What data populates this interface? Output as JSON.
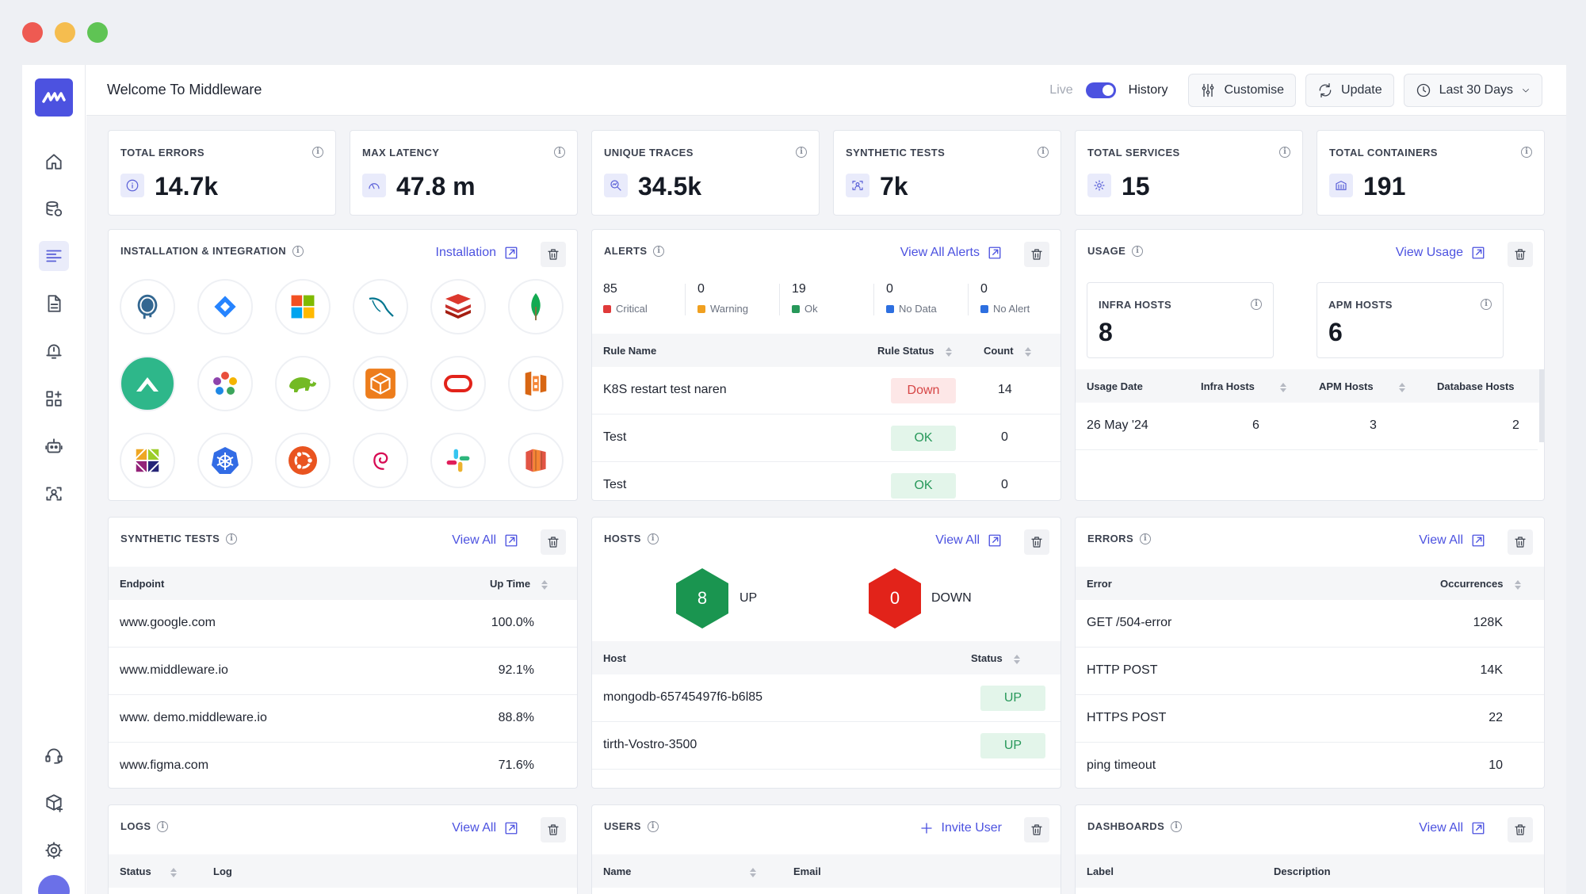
{
  "app": {
    "title": "Welcome To Middleware"
  },
  "topbar": {
    "live": "Live",
    "history": "History",
    "customise": "Customise",
    "update": "Update",
    "range": "Last 30 Days"
  },
  "stats": [
    {
      "label": "TOTAL ERRORS",
      "value": "14.7k",
      "icon": "info-circle-icon"
    },
    {
      "label": "MAX LATENCY",
      "value": "47.8 m",
      "icon": "gauge-icon"
    },
    {
      "label": "UNIQUE TRACES",
      "value": "34.5k",
      "icon": "trace-search-icon"
    },
    {
      "label": "SYNTHETIC TESTS",
      "value": "7k",
      "icon": "synthetic-icon"
    },
    {
      "label": "TOTAL SERVICES",
      "value": "15",
      "icon": "services-gear-icon"
    },
    {
      "label": "TOTAL CONTAINERS",
      "value": "191",
      "icon": "container-icon"
    }
  ],
  "installation": {
    "title": "INSTALLATION & INTEGRATION",
    "link": "Installation",
    "icons": [
      "postgresql-icon",
      "jira-icon",
      "microsoft-icon",
      "mysql-icon",
      "redis-icon",
      "mongodb-icon",
      "rancher-icon",
      "pinwheel-icon",
      "opensuse-icon",
      "aws-package-icon",
      "oracle-icon",
      "aws-ecs-icon",
      "centos-icon",
      "kubernetes-icon",
      "ubuntu-icon",
      "debian-icon",
      "slack-icon",
      "aws-icon"
    ]
  },
  "alerts": {
    "title": "ALERTS",
    "link": "View All Alerts",
    "summary": [
      {
        "count": "85",
        "label": "Critical",
        "color": "#e03a3a"
      },
      {
        "count": "0",
        "label": "Warning",
        "color": "#f0a020"
      },
      {
        "count": "19",
        "label": "Ok",
        "color": "#27985a"
      },
      {
        "count": "0",
        "label": "No Data",
        "color": "#2d6fe0"
      },
      {
        "count": "0",
        "label": "No Alert",
        "color": "#2d6fe0"
      }
    ],
    "columns": [
      "Rule Name",
      "Rule Status",
      "Count"
    ],
    "rows": [
      {
        "name": "K8S restart test naren",
        "status": "Down",
        "count": "14"
      },
      {
        "name": "Test",
        "status": "OK",
        "count": "0"
      },
      {
        "name": "Test",
        "status": "OK",
        "count": "0"
      }
    ]
  },
  "usage": {
    "title": "USAGE",
    "link": "View Usage",
    "infra_label": "INFRA HOSTS",
    "infra_value": "8",
    "apm_label": "APM HOSTS",
    "apm_value": "6",
    "columns": [
      "Usage Date",
      "Infra Hosts",
      "APM Hosts",
      "Database Hosts"
    ],
    "rows": [
      {
        "date": "26 May '24",
        "infra": "6",
        "apm": "3",
        "db": "2"
      }
    ]
  },
  "synthetic": {
    "title": "SYNTHETIC TESTS",
    "link": "View All",
    "columns": [
      "Endpoint",
      "Up Time"
    ],
    "rows": [
      {
        "endpoint": "www.google.com",
        "uptime": "100.0%"
      },
      {
        "endpoint": "www.middleware.io",
        "uptime": "92.1%"
      },
      {
        "endpoint": "www. demo.middleware.io",
        "uptime": "88.8%"
      },
      {
        "endpoint": "www.figma.com",
        "uptime": "71.6%"
      }
    ]
  },
  "hosts": {
    "title": "HOSTS",
    "link": "View All",
    "up_count": "8",
    "up_label": "UP",
    "down_count": "0",
    "down_label": "DOWN",
    "columns": [
      "Host",
      "Status"
    ],
    "rows": [
      {
        "host": "mongodb-65745497f6-b6l85",
        "status": "UP"
      },
      {
        "host": "tirth-Vostro-3500",
        "status": "UP"
      }
    ]
  },
  "errors": {
    "title": "ERRORS",
    "link": "View All",
    "columns": [
      "Error",
      "Occurrences"
    ],
    "rows": [
      {
        "error": "GET /504-error",
        "count": "128K"
      },
      {
        "error": "HTTP POST",
        "count": "14K"
      },
      {
        "error": "HTTPS POST",
        "count": "22"
      },
      {
        "error": "ping timeout",
        "count": "10"
      }
    ]
  },
  "logs": {
    "title": "LOGS",
    "link": "View All",
    "columns": [
      "Status",
      "Log"
    ]
  },
  "users": {
    "title": "USERS",
    "link": "Invite User",
    "columns": [
      "Name",
      "Email"
    ]
  },
  "dashboards": {
    "title": "DASHBOARDS",
    "link": "View All",
    "columns": [
      "Label",
      "Description"
    ]
  }
}
